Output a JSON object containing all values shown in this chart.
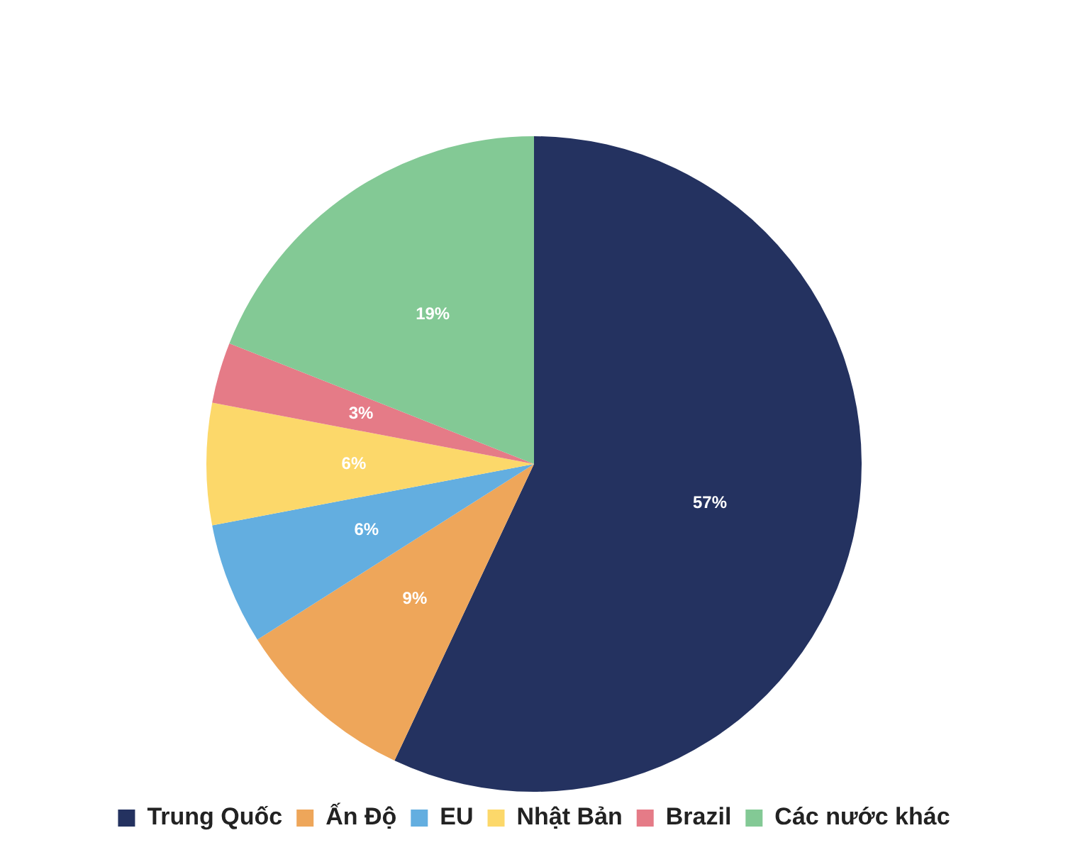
{
  "chart_data": {
    "type": "pie",
    "categories": [
      "Trung Quốc",
      "Ấn Độ",
      "EU",
      "Nhật Bản",
      "Brazil",
      "Các nước khác"
    ],
    "values": [
      57,
      9,
      6,
      6,
      3,
      19
    ],
    "colors": [
      "#243260",
      "#eea65a",
      "#63aee0",
      "#fcd86a",
      "#e57b87",
      "#83c995"
    ],
    "value_labels": [
      "57%",
      "9%",
      "6%",
      "6%",
      "3%",
      "19%"
    ],
    "legend": "bottom"
  }
}
